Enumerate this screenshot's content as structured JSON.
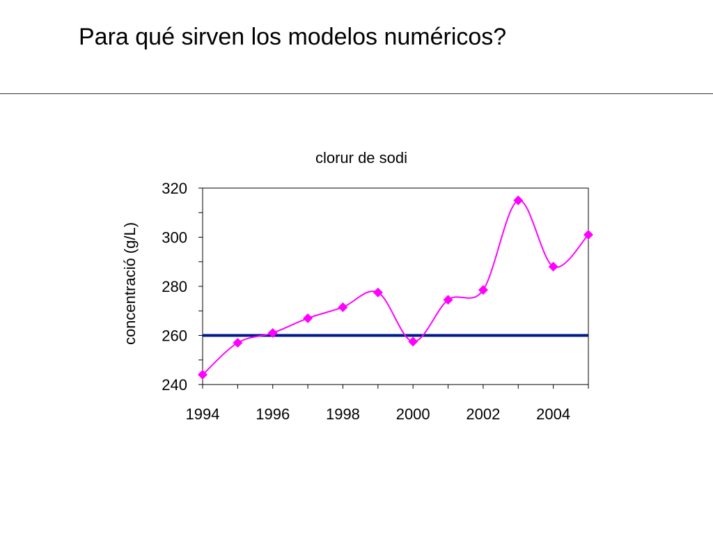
{
  "slide": {
    "title": "Para qué sirven los modelos numéricos?"
  },
  "chart_data": {
    "type": "line",
    "title": "clorur de sodi",
    "xlabel": "",
    "ylabel": "concentració (g/L)",
    "x": [
      1994,
      1995,
      1996,
      1997,
      1998,
      1999,
      2000,
      2001,
      2002,
      2003,
      2004,
      2005
    ],
    "xlim": [
      1994,
      2005
    ],
    "ylim": [
      240,
      320
    ],
    "x_tick_labels": [
      "1994",
      "1996",
      "1998",
      "2000",
      "2002",
      "2004"
    ],
    "x_tick_values": [
      1994,
      1996,
      1998,
      2000,
      2002,
      2004
    ],
    "y_tick_values": [
      240,
      260,
      280,
      300,
      320
    ],
    "y_tick_labels": [
      "240",
      "260",
      "280",
      "300",
      "320"
    ],
    "grid": false,
    "series": [
      {
        "values": [
          244,
          257,
          261,
          267,
          271.5,
          277.5,
          257.5,
          274.5,
          278.5,
          315,
          288,
          301
        ],
        "color": "#ff00ff",
        "marker": "diamond",
        "smooth": true
      }
    ],
    "reference_lines": [
      {
        "y": 260,
        "color": "#001a8c"
      }
    ]
  }
}
